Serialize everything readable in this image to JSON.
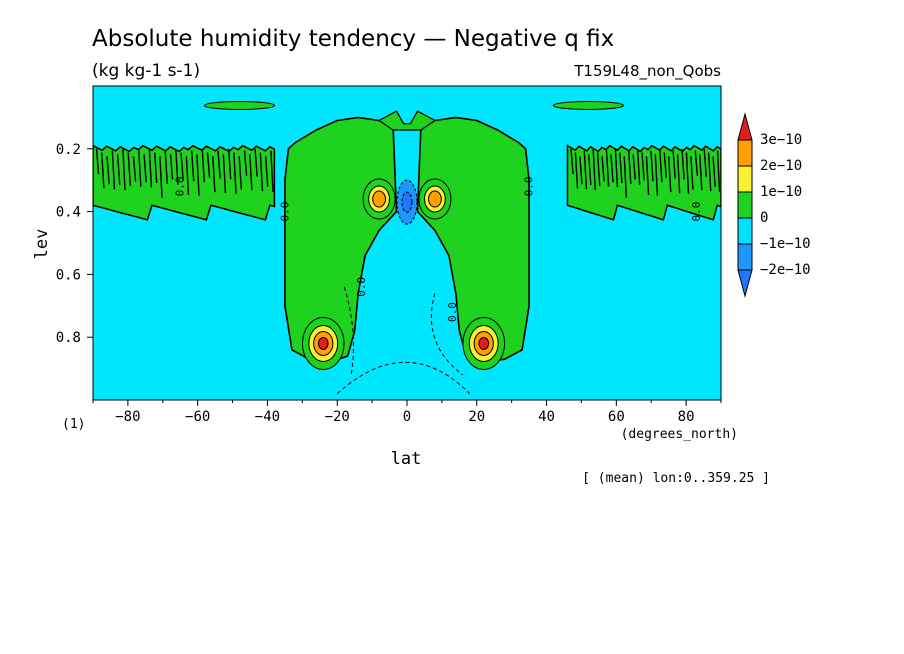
{
  "chart_data": {
    "type": "heatmap",
    "title": "Absolute humidity tendency — Negative q fix",
    "units": "(kg kg-1 s-1)",
    "run_label": "T159L48_non_Qobs",
    "xlabel": "lat",
    "x_units": "(degrees_north)",
    "ylabel": "lev",
    "y_units": "(1)",
    "footer": "[ (mean) lon:0..359.25 ]",
    "xlim": [
      -90,
      90
    ],
    "ylim": [
      1.0,
      0.0
    ],
    "y_inverted": true,
    "x_ticks": [
      -80,
      -60,
      -40,
      -20,
      0,
      20,
      40,
      60,
      80
    ],
    "x_tick_labels": [
      "−80",
      "−60",
      "−40",
      "−20",
      "0",
      "20",
      "40",
      "60",
      "80"
    ],
    "y_ticks": [
      0.2,
      0.4,
      0.6,
      0.8
    ],
    "y_tick_labels": [
      "0.2",
      "0.4",
      "0.6",
      "0.8"
    ],
    "contour_labels": [
      "0.0",
      "0.0",
      "0.0",
      "0.0",
      "0.0",
      "0.0"
    ],
    "colorbar": {
      "labels": [
        "3e−10",
        "2e−10",
        "1e−10",
        "0",
        "−1e−10",
        "−2e−10"
      ],
      "levels": [
        -3e-10,
        -2e-10,
        -1e-10,
        0,
        1e-10,
        2e-10,
        3e-10,
        4e-10
      ],
      "colors": [
        "#1e78ff",
        "#1e96ff",
        "#00e1ff",
        "#1ed21e",
        "#faf032",
        "#ffa000",
        "#e11e1e"
      ],
      "background_color": "#00e6ff"
    },
    "field_regions": [
      {
        "level": "0..1e-10",
        "shape": "band",
        "lat": [
          -90,
          -36
        ],
        "lev": [
          0.18,
          0.4
        ],
        "note": "noisy upper-troposphere band"
      },
      {
        "level": "0..1e-10",
        "shape": "band",
        "lat": [
          46,
          90
        ],
        "lev": [
          0.18,
          0.42
        ],
        "note": "noisy upper-troposphere band"
      },
      {
        "level": "0..1e-10",
        "shape": "strip",
        "lat": [
          -58,
          -38
        ],
        "lev": [
          0.05,
          0.08
        ]
      },
      {
        "level": "0..1e-10",
        "shape": "strip",
        "lat": [
          42,
          62
        ],
        "lev": [
          0.05,
          0.08
        ]
      },
      {
        "level": "0..1e-10",
        "shape": "lobe",
        "lat": [
          -35,
          -3
        ],
        "lev": [
          0.1,
          0.88
        ]
      },
      {
        "level": "0..1e-10",
        "shape": "lobe",
        "lat": [
          3,
          35
        ],
        "lev": [
          0.1,
          0.88
        ]
      },
      {
        "level": "1e-10..3e-10",
        "shape": "max",
        "lat": -8,
        "lev": 0.35
      },
      {
        "level": "1e-10..3e-10",
        "shape": "max",
        "lat": 8,
        "lev": 0.35
      },
      {
        "level": "1e-10..3e-10",
        "shape": "max",
        "lat": -24,
        "lev": 0.82
      },
      {
        "level": "1e-10..3e-10",
        "shape": "max",
        "lat": 22,
        "lev": 0.82
      },
      {
        "level": "-2e-10..-1e-10",
        "shape": "min",
        "lat": 0,
        "lev": 0.37
      }
    ],
    "legend_position": "right",
    "grid": false
  }
}
